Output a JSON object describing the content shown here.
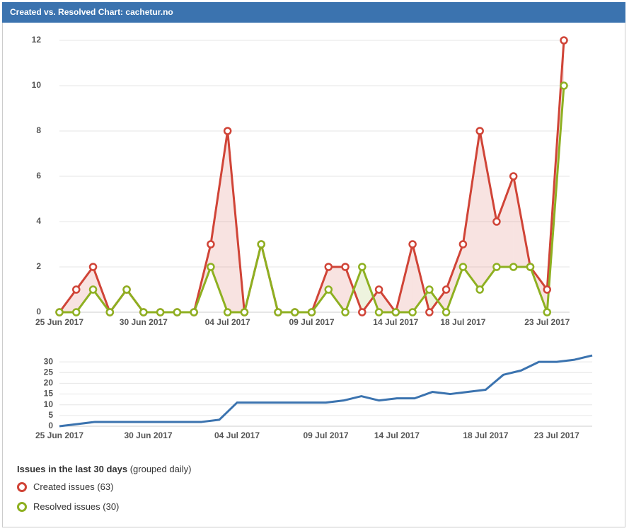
{
  "header": {
    "title": "Created vs. Resolved Chart: cachetur.no"
  },
  "legend": {
    "title": "Issues in the last 30 days",
    "note": "(grouped daily)"
  },
  "chart_data": [
    {
      "type": "line",
      "categories": [
        "25 Jun 2017",
        null,
        null,
        null,
        null,
        "30 Jun 2017",
        null,
        null,
        null,
        null,
        "04 Jul 2017",
        null,
        null,
        null,
        null,
        "09 Jul 2017",
        null,
        null,
        null,
        null,
        "14 Jul 2017",
        null,
        null,
        null,
        "18 Jul 2017",
        null,
        null,
        null,
        null,
        "23 Jul 2017",
        null
      ],
      "series": [
        {
          "name": "Created issues (63)",
          "color": "#d04437",
          "values": [
            0,
            1,
            2,
            0,
            1,
            0,
            0,
            0,
            0,
            3,
            8,
            0,
            3,
            0,
            0,
            0,
            2,
            2,
            0,
            1,
            0,
            3,
            0,
            1,
            3,
            8,
            4,
            6,
            2,
            1,
            12
          ]
        },
        {
          "name": "Resolved issues (30)",
          "color": "#8eb021",
          "values": [
            0,
            0,
            1,
            0,
            1,
            0,
            0,
            0,
            0,
            2,
            0,
            0,
            3,
            0,
            0,
            0,
            1,
            0,
            2,
            0,
            0,
            0,
            1,
            0,
            2,
            1,
            2,
            2,
            2,
            0,
            10
          ]
        }
      ],
      "ylim": [
        0,
        12.5
      ],
      "yticks": [
        0,
        2,
        4,
        6,
        8,
        10,
        12
      ],
      "grid": true
    },
    {
      "type": "line",
      "categories": [
        "25 Jun 2017",
        null,
        null,
        null,
        null,
        "30 Jun 2017",
        null,
        null,
        null,
        null,
        "04 Jul 2017",
        null,
        null,
        null,
        null,
        "09 Jul 2017",
        null,
        null,
        null,
        "14 Jul 2017",
        null,
        null,
        null,
        null,
        "18 Jul 2017",
        null,
        null,
        null,
        "23 Jul 2017",
        null,
        null
      ],
      "series": [
        {
          "color": "#3b73af",
          "values": [
            0,
            1,
            2,
            2,
            2,
            2,
            2,
            2,
            2,
            3,
            11,
            11,
            11,
            11,
            11,
            11,
            12,
            14,
            12,
            13,
            13,
            16,
            15,
            16,
            17,
            24,
            26,
            30,
            30,
            31,
            33
          ]
        }
      ],
      "ylim": [
        0,
        34
      ],
      "yticks": [
        0,
        5,
        10,
        15,
        20,
        25,
        30
      ],
      "grid": true
    }
  ]
}
